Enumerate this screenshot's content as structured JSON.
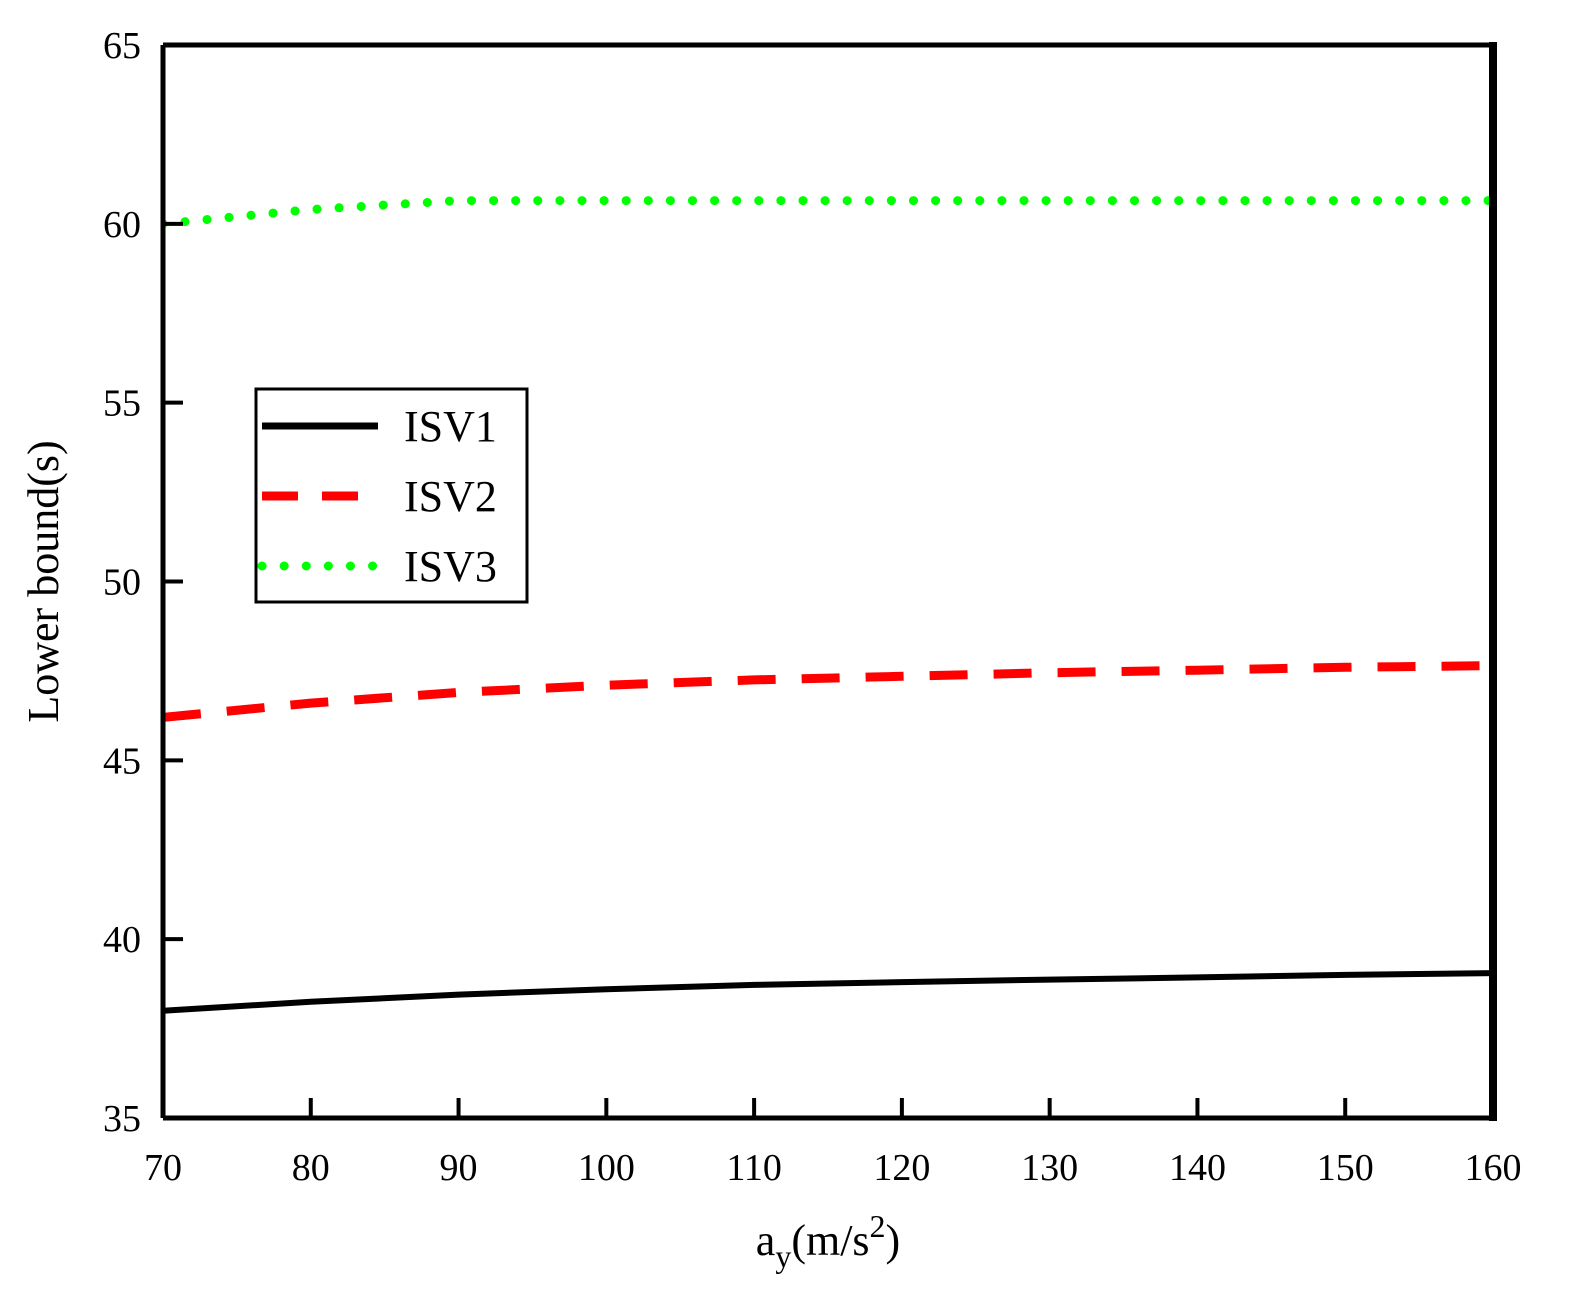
{
  "chart_data": {
    "type": "line",
    "title": "",
    "xlabel": "a_y(m/s^2)",
    "xlabel_parts": {
      "base": "a",
      "sub": "y",
      "paren": "(m/s",
      "sup": "2",
      "close": ")"
    },
    "ylabel": "Lower bound(s)",
    "xlim": [
      70,
      160
    ],
    "ylim": [
      35,
      65
    ],
    "xticks": [
      70,
      80,
      90,
      100,
      110,
      120,
      130,
      140,
      150,
      160
    ],
    "yticks": [
      35,
      40,
      45,
      50,
      55,
      60,
      65
    ],
    "grid": false,
    "legend_position": "center-left",
    "x": [
      70,
      80,
      90,
      100,
      110,
      120,
      130,
      140,
      150,
      160
    ],
    "series": [
      {
        "name": "ISV1",
        "color": "#000000",
        "style": "solid",
        "values": [
          38.0,
          38.25,
          38.45,
          38.6,
          38.72,
          38.8,
          38.87,
          38.93,
          39.0,
          39.05
        ]
      },
      {
        "name": "ISV2",
        "color": "#ff0000",
        "style": "dashed",
        "values": [
          46.2,
          46.6,
          46.9,
          47.1,
          47.25,
          47.35,
          47.45,
          47.52,
          47.6,
          47.65
        ]
      },
      {
        "name": "ISV3",
        "color": "#00ff00",
        "style": "dotted",
        "values": [
          60.0,
          60.4,
          60.65,
          60.65,
          60.65,
          60.65,
          60.65,
          60.65,
          60.65,
          60.65
        ]
      }
    ]
  }
}
